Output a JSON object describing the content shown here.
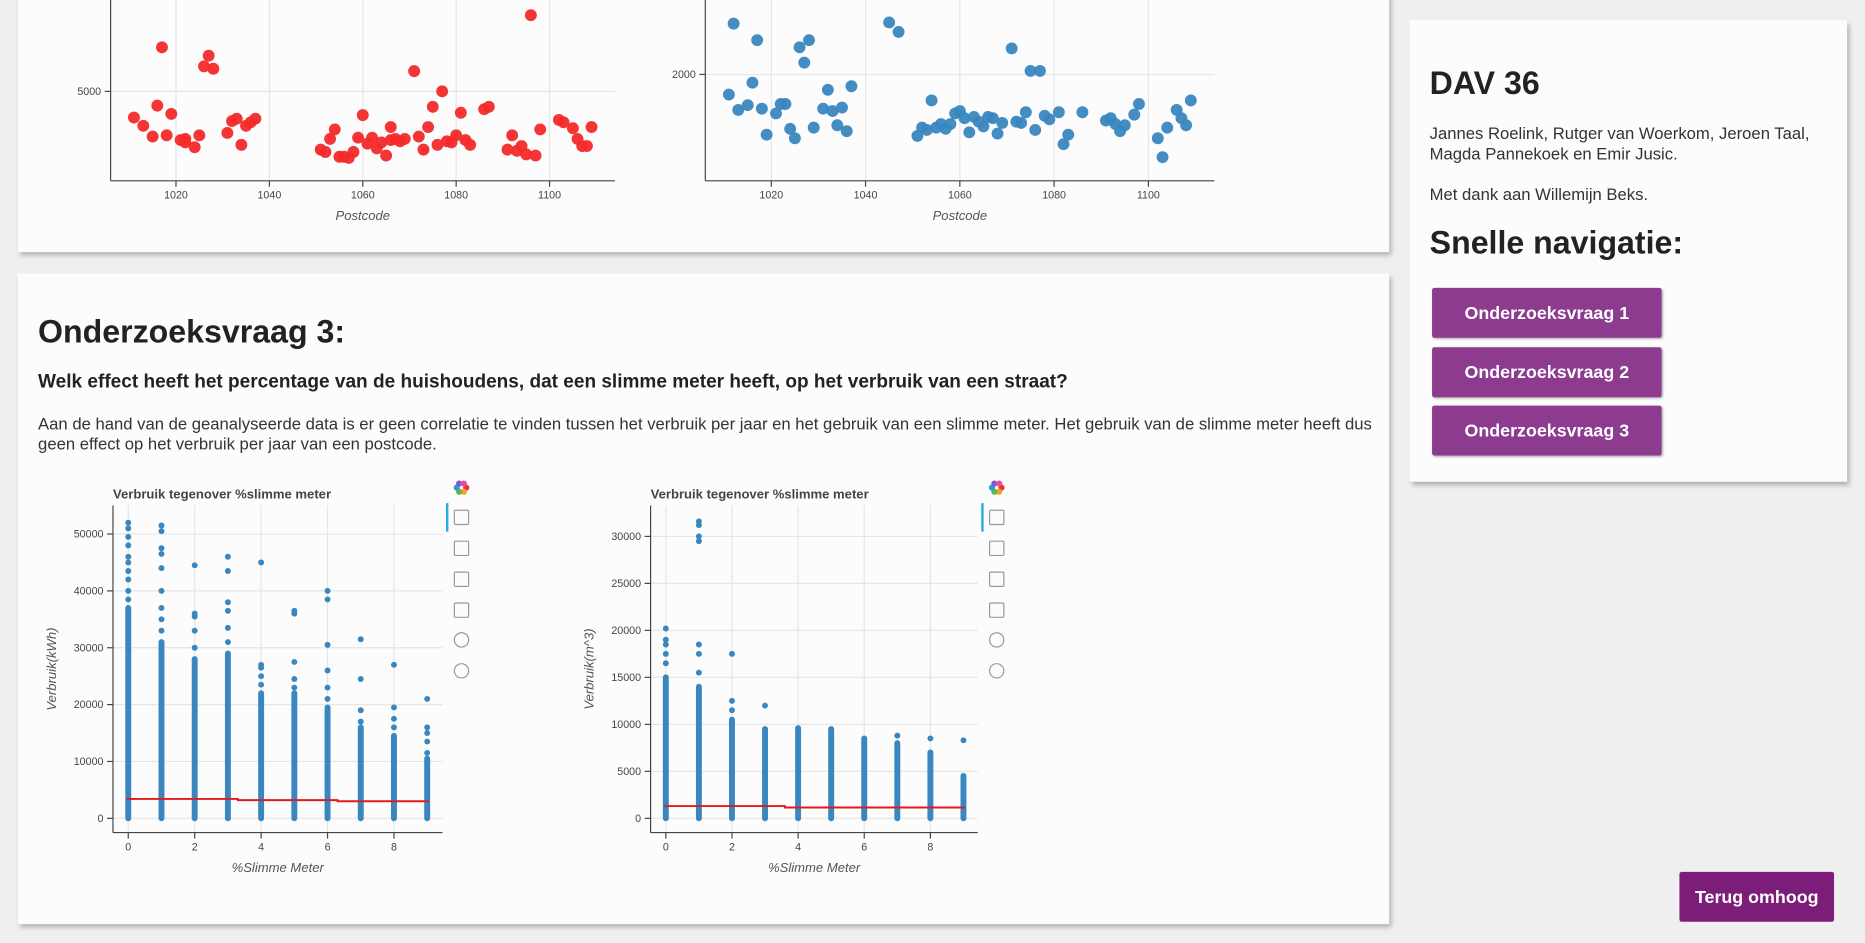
{
  "top_charts": [
    {
      "type": "scatter",
      "xlabel": "Postcode",
      "color": "#f42a2a",
      "xlim": [
        1006,
        1114
      ],
      "ylim": [
        300,
        9800
      ],
      "xticks": [
        1020,
        1040,
        1060,
        1080,
        1100
      ],
      "yticks": [
        5000
      ],
      "grid": true,
      "x": [
        1011,
        1013,
        1015,
        1016,
        1017,
        1018,
        1019,
        1021,
        1022,
        1022,
        1024,
        1025,
        1026,
        1027,
        1028,
        1031,
        1032,
        1033,
        1034,
        1035,
        1036,
        1037,
        1051,
        1052,
        1053,
        1054,
        1055,
        1056,
        1057,
        1058,
        1059,
        1060,
        1061,
        1062,
        1063,
        1064,
        1065,
        1066,
        1066,
        1067,
        1068,
        1069,
        1071,
        1072,
        1073,
        1074,
        1075,
        1076,
        1077,
        1078,
        1079,
        1080,
        1081,
        1082,
        1083,
        1086,
        1087,
        1091,
        1092,
        1093,
        1094,
        1095,
        1096,
        1097,
        1098,
        1102,
        1103,
        1105,
        1106,
        1107,
        1108,
        1109
      ],
      "y": [
        3625,
        3188,
        2625,
        4250,
        7313,
        2688,
        3813,
        2438,
        2313,
        2500,
        2063,
        2688,
        6313,
        6875,
        6188,
        2813,
        3438,
        3563,
        2188,
        3188,
        3375,
        3563,
        1938,
        1813,
        2500,
        3000,
        1563,
        1563,
        1500,
        1813,
        2563,
        3750,
        2250,
        2563,
        2000,
        2313,
        1625,
        2438,
        3125,
        2500,
        2375,
        2500,
        6063,
        2625,
        1938,
        3125,
        4188,
        2188,
        5000,
        2375,
        2313,
        2688,
        3875,
        2438,
        2188,
        4063,
        4188,
        1938,
        2688,
        1875,
        2125,
        1688,
        9000,
        1625,
        3000,
        3500,
        3375,
        3063,
        2500,
        2125,
        2125,
        3125
      ]
    },
    {
      "type": "scatter",
      "xlabel": "Postcode",
      "color": "#3a87c0",
      "xlim": [
        1006,
        1114
      ],
      "ylim": [
        1100,
        2630
      ],
      "xticks": [
        1020,
        1040,
        1060,
        1080,
        1100
      ],
      "yticks": [
        2000
      ],
      "grid": true,
      "x": [
        1011,
        1012,
        1013,
        1015,
        1016,
        1017,
        1018,
        1019,
        1021,
        1022,
        1023,
        1024,
        1025,
        1026,
        1027,
        1028,
        1029,
        1031,
        1032,
        1033,
        1034,
        1035,
        1036,
        1037,
        1045,
        1047,
        1051,
        1052,
        1053,
        1054,
        1055,
        1056,
        1057,
        1058,
        1059,
        1060,
        1061,
        1062,
        1063,
        1064,
        1065,
        1066,
        1067,
        1068,
        1069,
        1071,
        1072,
        1073,
        1074,
        1075,
        1076,
        1077,
        1078,
        1079,
        1081,
        1082,
        1083,
        1086,
        1091,
        1092,
        1093,
        1094,
        1095,
        1097,
        1098,
        1102,
        1103,
        1104,
        1106,
        1107,
        1108,
        1109
      ],
      "y": [
        1830,
        2430,
        1700,
        1740,
        1930,
        2290,
        1710,
        1490,
        1670,
        1750,
        1750,
        1540,
        1460,
        2230,
        2100,
        2290,
        1550,
        1710,
        1870,
        1690,
        1570,
        1720,
        1520,
        1900,
        2440,
        2360,
        1480,
        1550,
        1530,
        1780,
        1550,
        1580,
        1540,
        1580,
        1670,
        1690,
        1630,
        1510,
        1640,
        1600,
        1560,
        1640,
        1630,
        1500,
        1590,
        2220,
        1600,
        1590,
        1680,
        2030,
        1530,
        2030,
        1650,
        1620,
        1680,
        1410,
        1490,
        1680,
        1610,
        1630,
        1580,
        1520,
        1570,
        1660,
        1750,
        1460,
        1300,
        1550,
        1700,
        1630,
        1570,
        1780
      ]
    }
  ],
  "section": {
    "title": "Onderzoeksvraag 3:",
    "question": "Welk effect heeft het percentage van de huishoudens, dat een slimme meter heeft, op het verbruik van een straat?",
    "text": "Aan de hand van de geanalyseerde data is er geen correlatie te vinden tussen het verbruik per jaar en het gebruik van een slimme meter. Het gebruik van de slimme meter heeft dus geen effect op het verbruik per jaar van een postcode."
  },
  "bottom_charts": [
    {
      "type": "strip",
      "title": "Verbruik tegenover %slimme meter",
      "xlabel": "%Slimme Meter",
      "ylabel": "Verbruik(kWh)",
      "color": "#3a87c0",
      "trend_color": "#e31a1c",
      "xlim": [
        -0.46,
        9.46
      ],
      "ylim": [
        -2510,
        55020
      ],
      "xticks": [
        0,
        2,
        4,
        6,
        8
      ],
      "yticks": [
        0,
        10000,
        20000,
        30000,
        40000,
        50000
      ],
      "grid": true,
      "columns": [
        {
          "x": 0,
          "range": [
            0,
            37000
          ],
          "outliers": [
            38500,
            40000,
            42000,
            43500,
            45000,
            46000,
            48000,
            49500,
            51000,
            52000
          ]
        },
        {
          "x": 1,
          "range": [
            0,
            31000
          ],
          "outliers": [
            33000,
            35000,
            37000,
            40000,
            44000,
            46500,
            47500,
            50500,
            51500
          ]
        },
        {
          "x": 2,
          "range": [
            0,
            28000
          ],
          "outliers": [
            30000,
            33000,
            35500,
            36000,
            44500
          ]
        },
        {
          "x": 3,
          "range": [
            0,
            29000
          ],
          "outliers": [
            31000,
            33500,
            36500,
            38000,
            43500,
            46000
          ]
        },
        {
          "x": 4,
          "range": [
            0,
            22000
          ],
          "outliers": [
            23500,
            25000,
            26500,
            27000,
            45000
          ]
        },
        {
          "x": 5,
          "range": [
            0,
            22000
          ],
          "outliers": [
            23000,
            24500,
            27500,
            36000,
            36500
          ]
        },
        {
          "x": 6,
          "range": [
            0,
            19500
          ],
          "outliers": [
            21000,
            23000,
            26000,
            30500,
            38500,
            40000
          ]
        },
        {
          "x": 7,
          "range": [
            0,
            16000
          ],
          "outliers": [
            17000,
            19000,
            24500,
            31500
          ]
        },
        {
          "x": 8,
          "range": [
            0,
            14500
          ],
          "outliers": [
            16000,
            17500,
            19500,
            27000
          ]
        },
        {
          "x": 9,
          "range": [
            0,
            10500
          ],
          "outliers": [
            11500,
            13500,
            15000,
            16000,
            21000
          ]
        }
      ],
      "trend": {
        "x": [
          -0.05,
          3.3,
          3.3,
          6.3,
          6.3,
          9.05
        ],
        "y": [
          3400,
          3400,
          3200,
          3200,
          3000,
          3000
        ]
      }
    },
    {
      "type": "strip",
      "title": "Verbruik tegenover %slimme meter",
      "xlabel": "%Slimme Meter",
      "ylabel": "Verbruik(m^3)",
      "color": "#3a87c0",
      "trend_color": "#e31a1c",
      "xlim": [
        -0.46,
        9.43
      ],
      "ylim": [
        -1519,
        33290
      ],
      "xticks": [
        0,
        2,
        4,
        6,
        8
      ],
      "yticks": [
        0,
        5000,
        10000,
        15000,
        20000,
        25000,
        30000
      ],
      "grid": true,
      "columns": [
        {
          "x": 0,
          "range": [
            0,
            15000
          ],
          "outliers": [
            16500,
            17500,
            18500,
            19000,
            20200
          ]
        },
        {
          "x": 1,
          "range": [
            0,
            14000
          ],
          "outliers": [
            15500,
            17500,
            18500,
            29500,
            30000,
            31200,
            31600
          ]
        },
        {
          "x": 2,
          "range": [
            0,
            10500
          ],
          "outliers": [
            11500,
            12500,
            17500
          ]
        },
        {
          "x": 3,
          "range": [
            0,
            9500
          ],
          "outliers": [
            12000
          ]
        },
        {
          "x": 4,
          "range": [
            0,
            9600
          ],
          "outliers": []
        },
        {
          "x": 5,
          "range": [
            0,
            9500
          ],
          "outliers": []
        },
        {
          "x": 6,
          "range": [
            0,
            8500
          ],
          "outliers": []
        },
        {
          "x": 7,
          "range": [
            0,
            8000
          ],
          "outliers": [
            8800
          ]
        },
        {
          "x": 8,
          "range": [
            0,
            7000
          ],
          "outliers": [
            8500
          ]
        },
        {
          "x": 9,
          "range": [
            0,
            4500
          ],
          "outliers": [
            8300
          ]
        }
      ],
      "trend": {
        "x": [
          -0.05,
          3.6,
          3.6,
          9.05
        ],
        "y": [
          1300,
          1300,
          1150,
          1150
        ]
      }
    }
  ],
  "sidebar": {
    "title": "DAV 36",
    "authors": "Jannes Roelink, Rutger van Woerkom, Jeroen Taal, Magda Pannekoek en Emir Jusic.",
    "thanks": "Met dank aan Willemijn Beks.",
    "nav_title": "Snelle navigatie:",
    "buttons": [
      "Onderzoeksvraag 1",
      "Onderzoeksvraag 2",
      "Onderzoeksvraag 3"
    ]
  },
  "back_button": "Terug omhoog"
}
